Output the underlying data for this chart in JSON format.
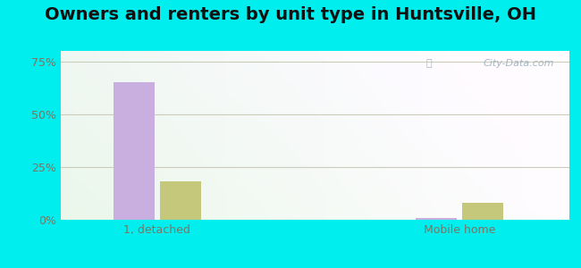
{
  "title": "Owners and renters by unit type in Huntsville, OH",
  "categories": [
    "1, detached",
    "Mobile home"
  ],
  "owner_values": [
    65.0,
    1.0
  ],
  "renter_values": [
    18.0,
    8.0
  ],
  "owner_color": "#c9aee0",
  "renter_color": "#c5c87a",
  "yticks": [
    0,
    25,
    50,
    75
  ],
  "ytick_labels": [
    "0%",
    "25%",
    "50%",
    "75%"
  ],
  "ylim": [
    0,
    80
  ],
  "bar_width": 0.3,
  "group_positions": [
    1.0,
    3.2
  ],
  "outer_bg": "#00eeee",
  "watermark": "City-Data.com",
  "title_fontsize": 14,
  "label_fontsize": 9,
  "tick_fontsize": 9,
  "grid_color": "#ddddcc",
  "axis_label_color": "#777766"
}
